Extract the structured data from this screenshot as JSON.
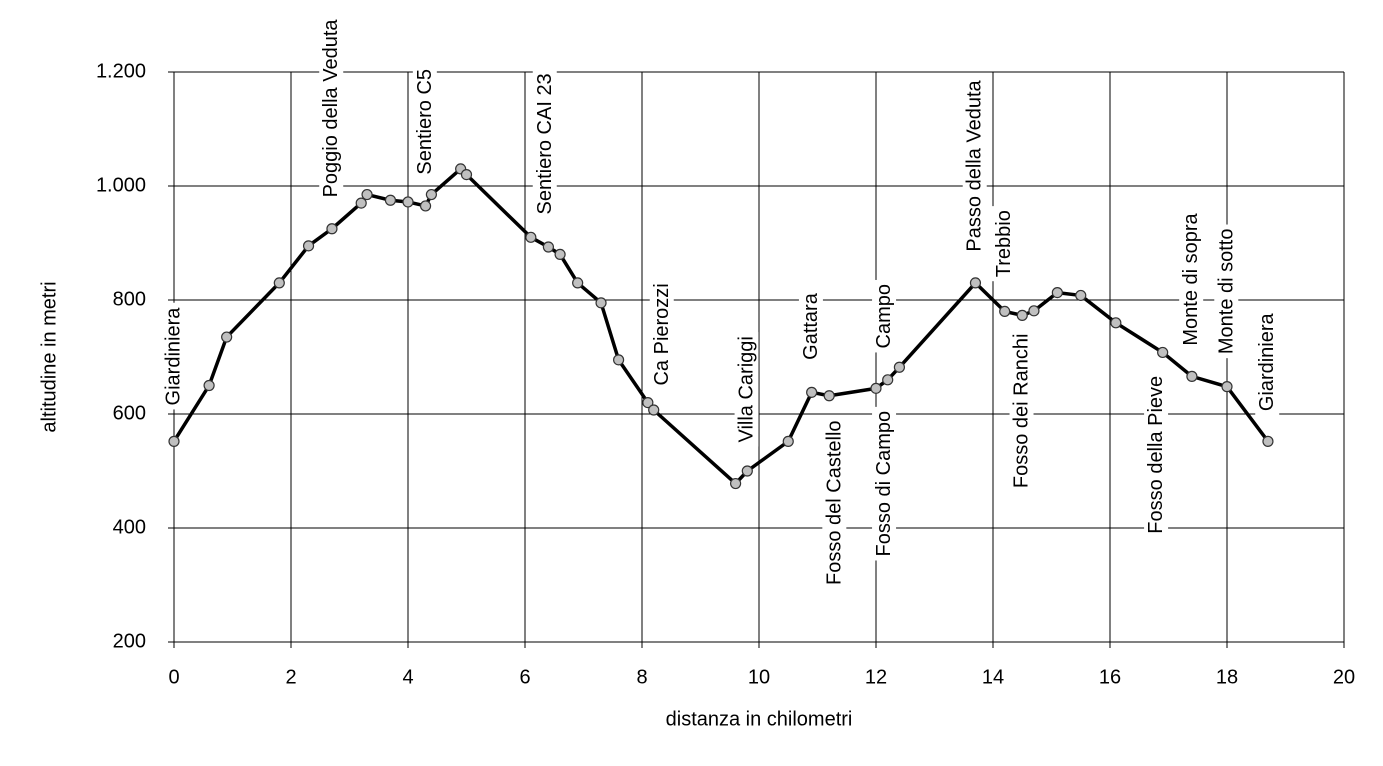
{
  "chart_data": {
    "type": "line",
    "x_label": "distanza in chilometri",
    "y_label": "altitudine  in metri",
    "x": [
      0,
      0.6,
      0.9,
      1.8,
      2.3,
      2.7,
      3.2,
      3.3,
      3.7,
      4.0,
      4.3,
      4.4,
      4.9,
      5.0,
      6.1,
      6.4,
      6.6,
      6.9,
      7.3,
      7.6,
      8.1,
      8.2,
      9.6,
      9.8,
      10.5,
      10.9,
      11.2,
      12.0,
      12.2,
      12.4,
      13.7,
      14.2,
      14.5,
      14.7,
      15.1,
      15.5,
      16.1,
      16.9,
      17.4,
      18.0,
      18.7
    ],
    "series": [
      {
        "color": "#000000",
        "marker_color": "#c0c0c0",
        "values": [
          552,
          650,
          735,
          830,
          895,
          925,
          970,
          985,
          975,
          972,
          965,
          985,
          1030,
          1020,
          910,
          893,
          880,
          830,
          795,
          695,
          620,
          607,
          478,
          500,
          552,
          638,
          632,
          645,
          660,
          682,
          830,
          780,
          773,
          781,
          813,
          808,
          760,
          708,
          666,
          648,
          552
        ]
      }
    ],
    "xlim": [
      0,
      20
    ],
    "xticks": [
      0,
      2,
      4,
      6,
      8,
      10,
      12,
      14,
      16,
      18,
      20
    ],
    "ylim": [
      200,
      1200
    ],
    "yticks": [
      200,
      400,
      600,
      800,
      {
        "value": 1000,
        "label": "1.000"
      },
      {
        "value": 1200,
        "label": "1.200"
      }
    ],
    "grid": true,
    "annotations": [
      {
        "text": "Giardiniera",
        "x": 0,
        "y": 615
      },
      {
        "text": "Poggio della Veduta",
        "x": 2.7,
        "y": 980
      },
      {
        "text": "Sentiero C5",
        "x": 4.3,
        "y": 1020
      },
      {
        "text": "Sentiero CAI 23",
        "x": 6.35,
        "y": 950
      },
      {
        "text": "Ca Pierozzi",
        "x": 8.35,
        "y": 650
      },
      {
        "text": "Villa Cariggi",
        "x": 9.8,
        "y": 550
      },
      {
        "text": "Gattara",
        "x": 10.9,
        "y": 695
      },
      {
        "text": "Fosso del Castello",
        "x": 11.3,
        "y": 300
      },
      {
        "text": "Campo",
        "x": 12.15,
        "y": 715
      },
      {
        "text": "Fosso di Campo",
        "x": 12.15,
        "y": 350
      },
      {
        "text": "Passo della Veduta",
        "x": 13.7,
        "y": 885
      },
      {
        "text": "Trebbio",
        "x": 14.2,
        "y": 840
      },
      {
        "text": "Fosso dei Ranchi",
        "x": 14.5,
        "y": 470
      },
      {
        "text": "Fosso della Pieve",
        "x": 16.8,
        "y": 390
      },
      {
        "text": "Monte di sopra",
        "x": 17.4,
        "y": 720
      },
      {
        "text": "Monte di sotto",
        "x": 18.0,
        "y": 705
      },
      {
        "text": "Giardiniera",
        "x": 18.7,
        "y": 605
      }
    ]
  }
}
